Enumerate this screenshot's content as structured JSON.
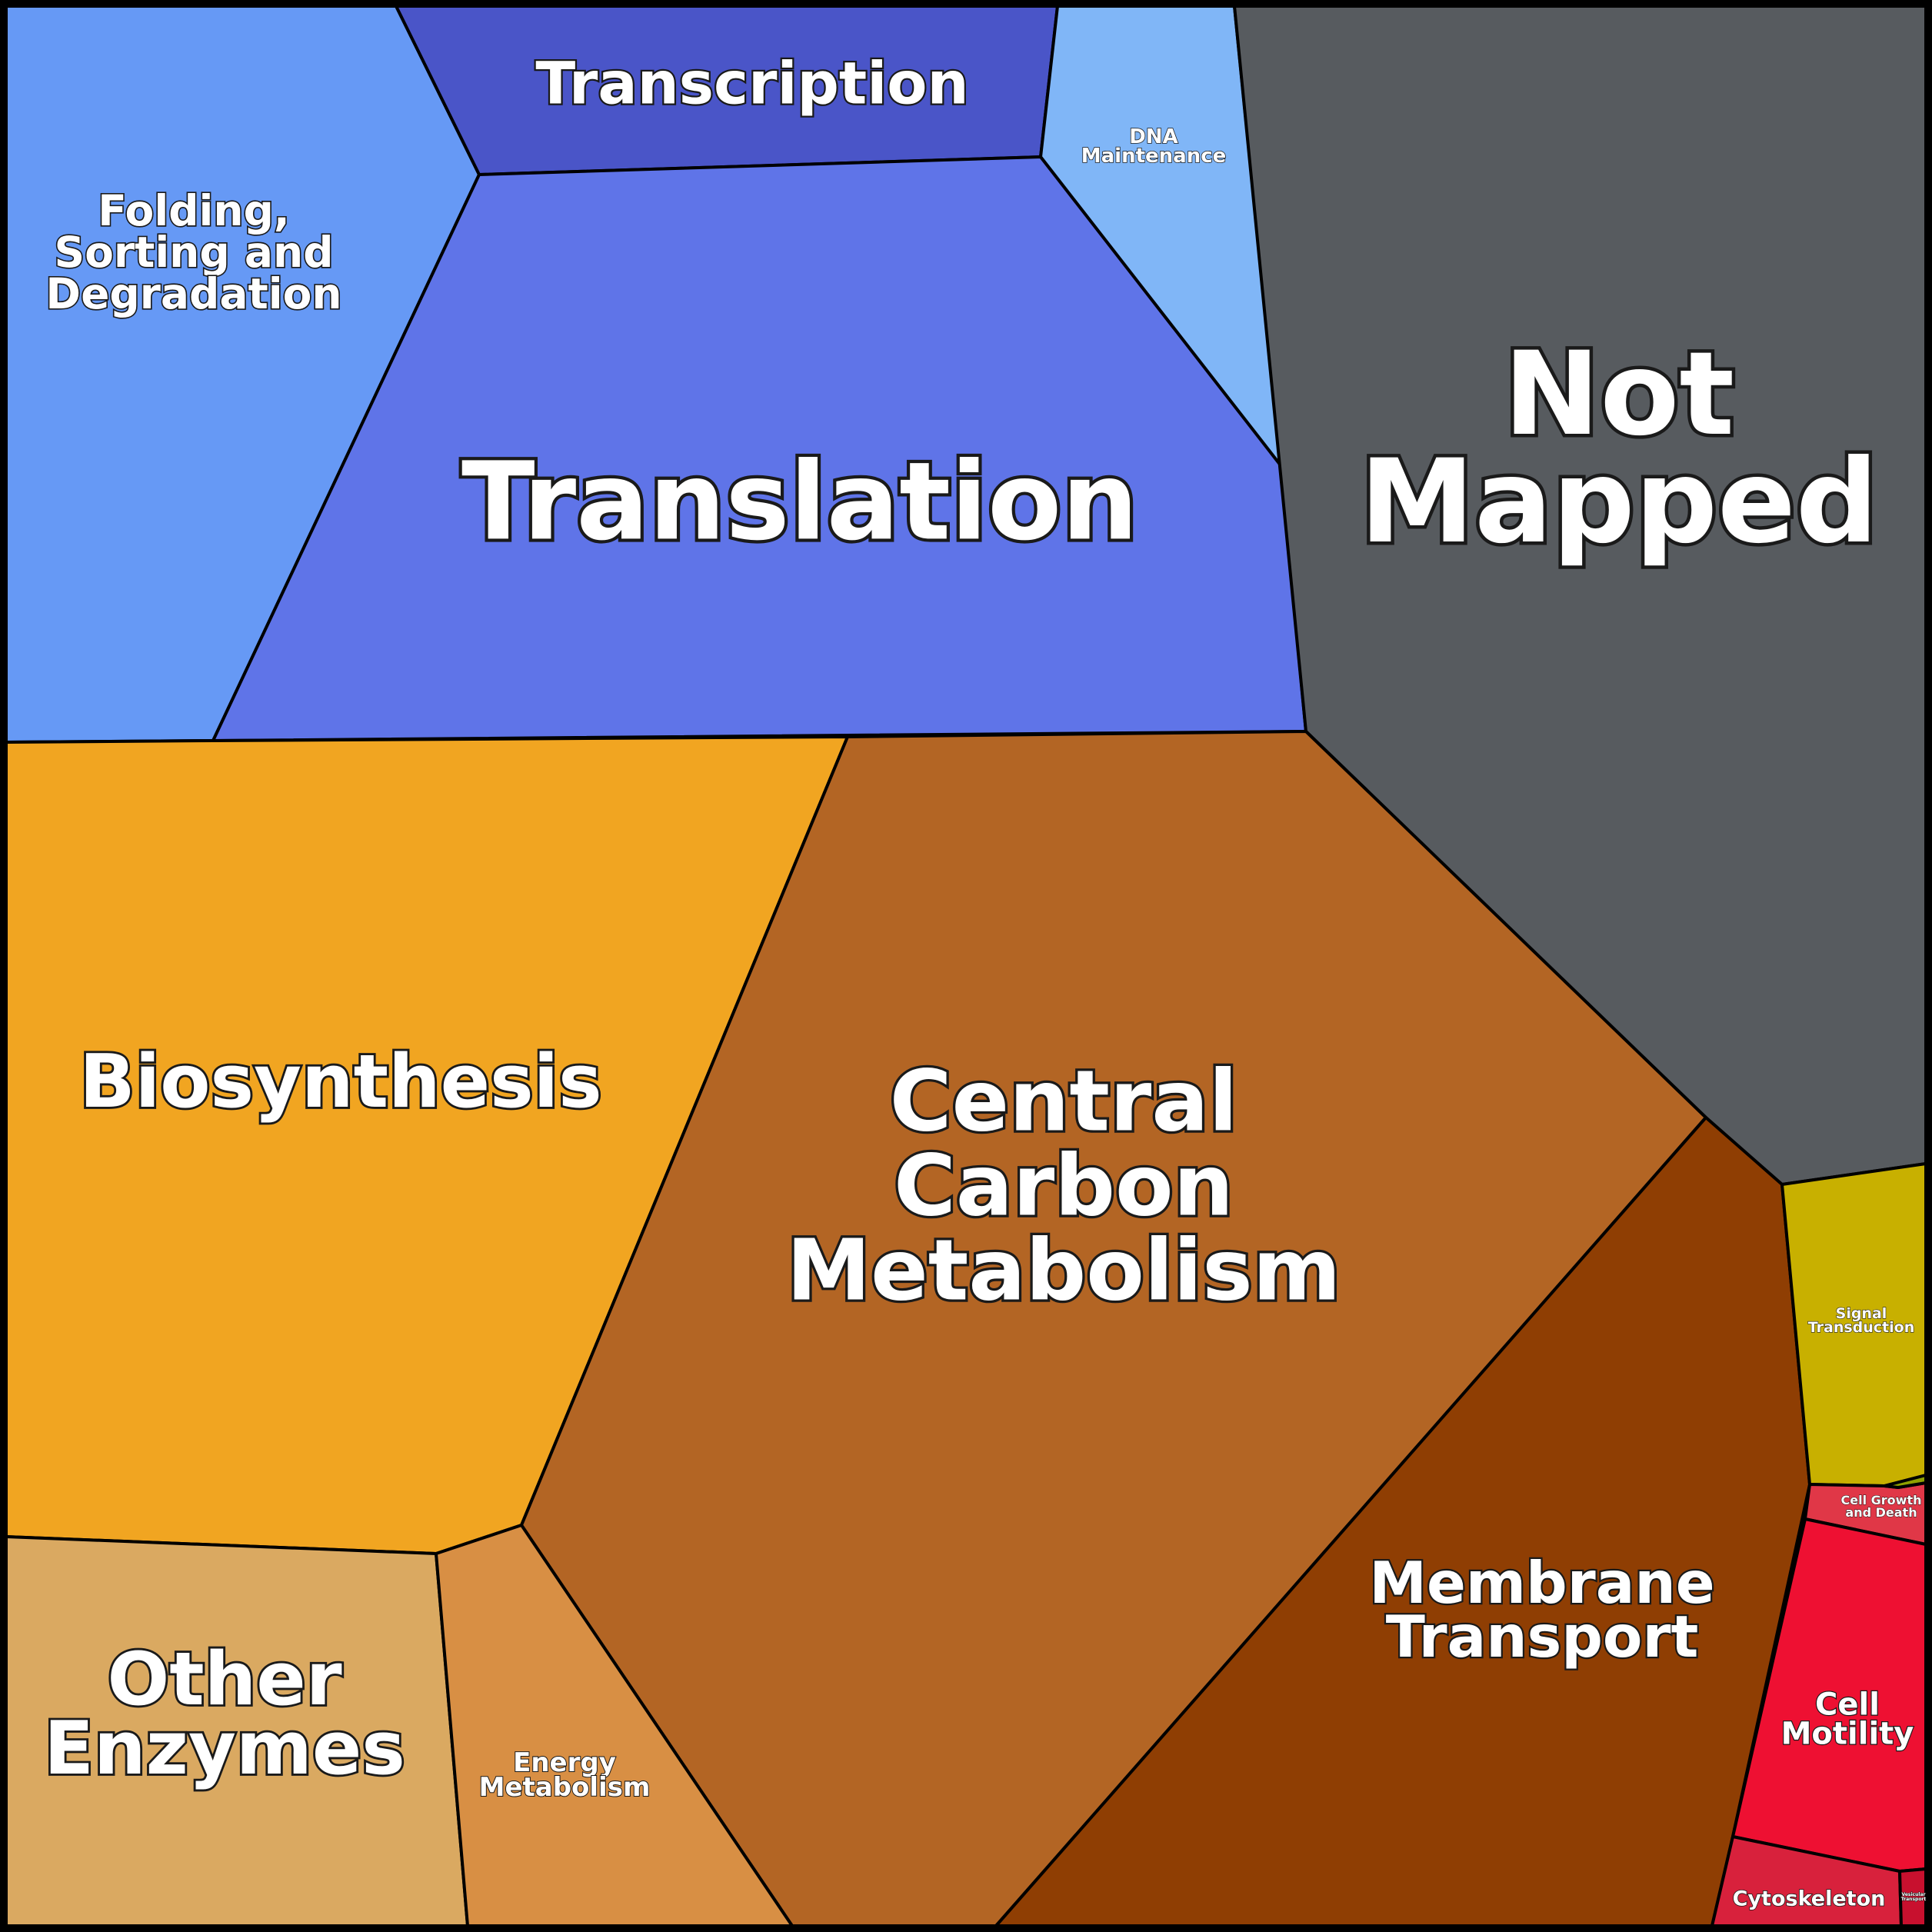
{
  "diagram": {
    "type": "voronoi-treemap",
    "cells": [
      {
        "id": "folding",
        "label_lines": [
          "Folding,",
          "Sorting and",
          "Degradation"
        ],
        "color": "#6699f5"
      },
      {
        "id": "transcription",
        "label_lines": [
          "Transcription"
        ],
        "color": "#4a55c8"
      },
      {
        "id": "dna-maintenance",
        "label_lines": [
          "DNA",
          "Maintenance"
        ],
        "color": "#80b6f7"
      },
      {
        "id": "translation",
        "label_lines": [
          "Translation"
        ],
        "color": "#5f74e8"
      },
      {
        "id": "not-mapped",
        "label_lines": [
          "Not",
          "Mapped"
        ],
        "color": "#575b5f"
      },
      {
        "id": "biosynthesis",
        "label_lines": [
          "Biosynthesis"
        ],
        "color": "#f1a521"
      },
      {
        "id": "central-carbon",
        "label_lines": [
          "Central",
          "Carbon",
          "Metabolism"
        ],
        "color": "#b36524"
      },
      {
        "id": "other-enzymes",
        "label_lines": [
          "Other",
          "Enzymes"
        ],
        "color": "#daa961"
      },
      {
        "id": "energy-metabolism",
        "label_lines": [
          "Energy",
          "Metabolism"
        ],
        "color": "#d88f44"
      },
      {
        "id": "membrane-transport",
        "label_lines": [
          "Membrane",
          "Transport"
        ],
        "color": "#8f3e03"
      },
      {
        "id": "signal-transduction",
        "label_lines": [
          "Signal",
          "Transduction"
        ],
        "color": "#c8b000"
      },
      {
        "id": "cell-growth",
        "label_lines": [
          "Cell Growth",
          "and Death"
        ],
        "color": "#e03747"
      },
      {
        "id": "cell-motility",
        "label_lines": [
          "Cell",
          "Motility"
        ],
        "color": "#ee1032"
      },
      {
        "id": "cytoskeleton",
        "label_lines": [
          "Cytoskeleton"
        ],
        "color": "#d8213c"
      },
      {
        "id": "vesicular-transport",
        "label_lines": [
          "Vesicular",
          "Transport"
        ],
        "color": "#c8102e"
      },
      {
        "id": "sliver",
        "label_lines": [],
        "color": "#8fa000"
      }
    ]
  }
}
